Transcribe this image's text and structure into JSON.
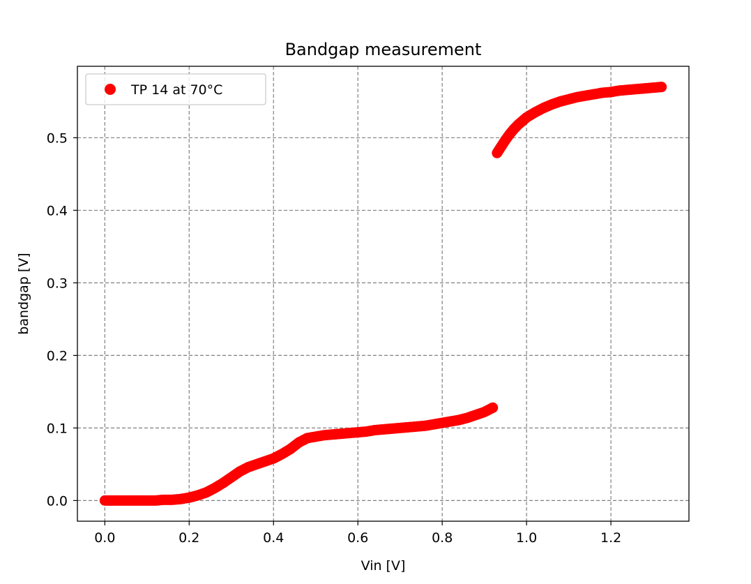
{
  "chart_data": {
    "type": "scatter",
    "title": "Bandgap measurement",
    "xlabel": "Vin [V]",
    "ylabel": "bandgap [V]",
    "xlim": [
      -0.065,
      1.385
    ],
    "ylim": [
      -0.0285,
      0.5985
    ],
    "xticks": [
      0.0,
      0.2,
      0.4,
      0.6,
      0.8,
      1.0,
      1.2
    ],
    "xtick_labels": [
      "0.0",
      "0.2",
      "0.4",
      "0.6",
      "0.8",
      "1.0",
      "1.2"
    ],
    "yticks": [
      0.0,
      0.1,
      0.2,
      0.3,
      0.4,
      0.5
    ],
    "ytick_labels": [
      "0.0",
      "0.1",
      "0.2",
      "0.3",
      "0.4",
      "0.5"
    ],
    "grid": true,
    "legend_position": "top-left",
    "series": [
      {
        "name": "TP 14 at 70°C",
        "color": "#ff0000",
        "x": [
          0.0,
          0.02,
          0.04,
          0.06,
          0.08,
          0.1,
          0.12,
          0.14,
          0.16,
          0.18,
          0.2,
          0.22,
          0.24,
          0.26,
          0.28,
          0.3,
          0.32,
          0.34,
          0.36,
          0.38,
          0.4,
          0.42,
          0.44,
          0.46,
          0.48,
          0.5,
          0.52,
          0.54,
          0.56,
          0.58,
          0.6,
          0.62,
          0.64,
          0.66,
          0.68,
          0.7,
          0.72,
          0.74,
          0.76,
          0.78,
          0.8,
          0.82,
          0.84,
          0.86,
          0.88,
          0.9,
          0.92,
          0.93,
          0.94,
          0.95,
          0.96,
          0.97,
          0.98,
          0.99,
          1.0,
          1.02,
          1.04,
          1.06,
          1.08,
          1.1,
          1.12,
          1.14,
          1.16,
          1.18,
          1.2,
          1.22,
          1.24,
          1.26,
          1.28,
          1.3,
          1.32
        ],
        "y": [
          0.0,
          0.0,
          0.0,
          0.0,
          0.0,
          0.0,
          0.0,
          0.001,
          0.001,
          0.002,
          0.004,
          0.007,
          0.011,
          0.017,
          0.024,
          0.032,
          0.04,
          0.046,
          0.05,
          0.054,
          0.058,
          0.064,
          0.071,
          0.08,
          0.086,
          0.088,
          0.09,
          0.091,
          0.092,
          0.093,
          0.094,
          0.095,
          0.097,
          0.098,
          0.099,
          0.1,
          0.101,
          0.102,
          0.103,
          0.105,
          0.107,
          0.109,
          0.111,
          0.114,
          0.118,
          0.122,
          0.128,
          0.479,
          0.488,
          0.497,
          0.505,
          0.512,
          0.518,
          0.523,
          0.528,
          0.535,
          0.541,
          0.546,
          0.55,
          0.553,
          0.556,
          0.558,
          0.56,
          0.562,
          0.563,
          0.565,
          0.566,
          0.567,
          0.568,
          0.569,
          0.57
        ]
      }
    ]
  }
}
